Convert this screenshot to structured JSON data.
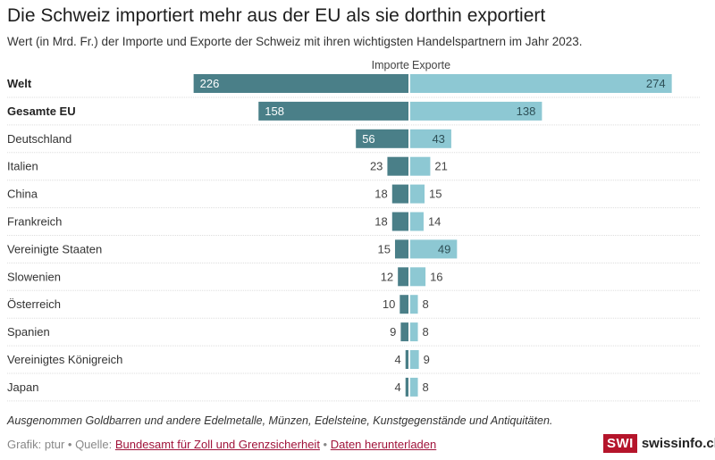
{
  "chart_data": {
    "type": "bar",
    "orientation": "horizontal-diverging",
    "title": "Die Schweiz importiert mehr aus der EU als sie dorthin exportiert",
    "subtitle": "Wert (in Mrd. Fr.) der Importe und Exporte der Schweiz mit ihren wichtigsten Handelspartnern im Jahr 2023.",
    "xlabel": "",
    "ylabel": "",
    "legend_position": "top-center",
    "categories": [
      "Welt",
      "Gesamte EU",
      "Deutschland",
      "Italien",
      "China",
      "Frankreich",
      "Vereinigte Staaten",
      "Slowenien",
      "Österreich",
      "Spanien",
      "Vereinigtes Königreich",
      "Japan"
    ],
    "bold_categories": [
      "Welt",
      "Gesamte EU"
    ],
    "series": [
      {
        "name": "Importe",
        "color": "#4a7f88",
        "values": [
          226,
          158,
          56,
          23,
          18,
          18,
          15,
          12,
          10,
          9,
          4,
          4
        ]
      },
      {
        "name": "Exporte",
        "color": "#8dc8d3",
        "values": [
          274,
          138,
          43,
          21,
          15,
          14,
          49,
          16,
          8,
          8,
          9,
          8
        ]
      }
    ],
    "xlim": [
      -226,
      274
    ],
    "grid": false
  },
  "legend": {
    "imports": "Importe",
    "exports": "Exporte"
  },
  "footer": {
    "note": "Ausgenommen Goldbarren und andere Edelmetalle, Münzen, Edelsteine, Kunstgegenstände und Antiquitäten.",
    "credit_prefix": "Grafik: ptur • Quelle: ",
    "source_link": "Bundesamt für Zoll und Grenzsicherheit",
    "separator": " • ",
    "download_link": "Daten herunterladen"
  },
  "logo": {
    "badge": "SWI",
    "text": "swissinfo.ch",
    "color": "#b5152b"
  }
}
